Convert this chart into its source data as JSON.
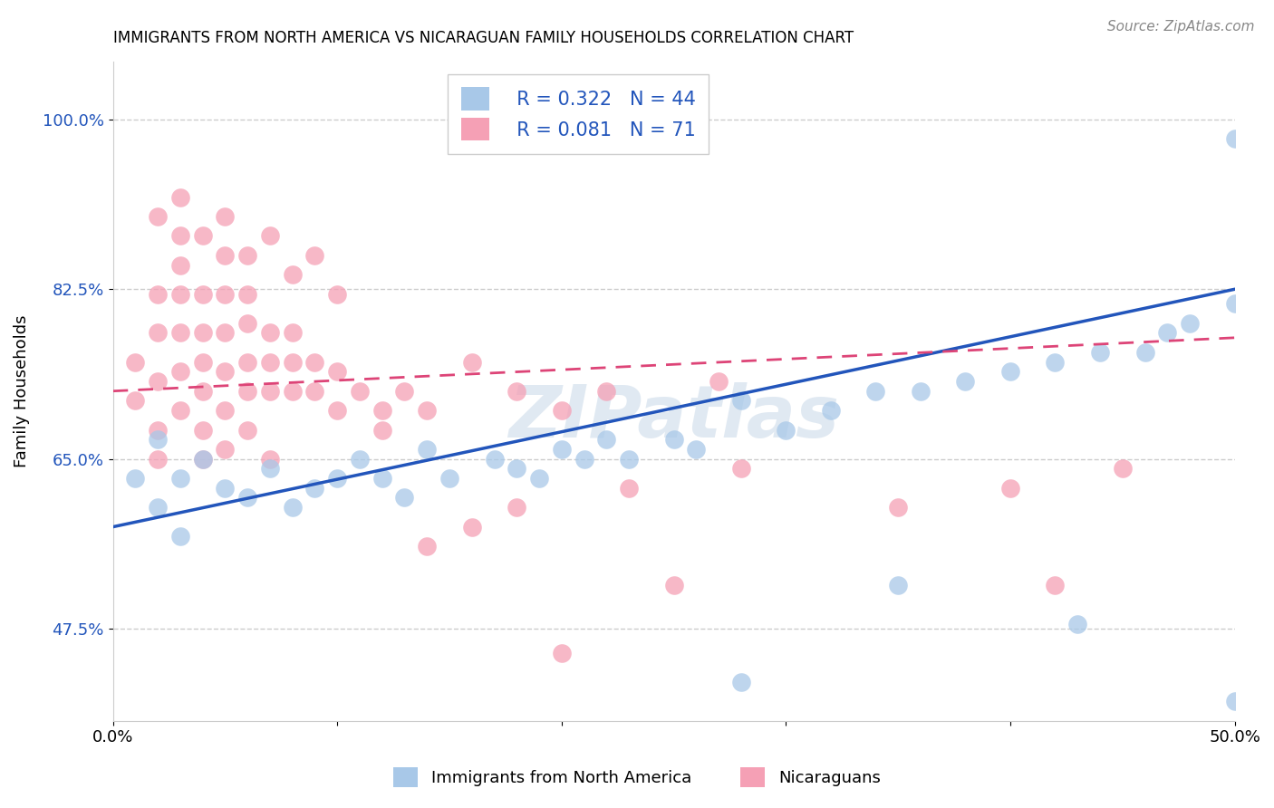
{
  "title": "IMMIGRANTS FROM NORTH AMERICA VS NICARAGUAN FAMILY HOUSEHOLDS CORRELATION CHART",
  "source": "Source: ZipAtlas.com",
  "ylabel": "Family Households",
  "xlim": [
    0.0,
    0.5
  ],
  "ylim": [
    0.38,
    1.06
  ],
  "yticks": [
    0.475,
    0.65,
    0.825,
    1.0
  ],
  "ytick_labels": [
    "47.5%",
    "65.0%",
    "82.5%",
    "100.0%"
  ],
  "xticks": [
    0.0,
    0.1,
    0.2,
    0.3,
    0.4,
    0.5
  ],
  "xtick_labels": [
    "0.0%",
    "",
    "",
    "",
    "",
    "50.0%"
  ],
  "blue_color": "#a8c8e8",
  "pink_color": "#f5a0b5",
  "blue_line_color": "#2255bb",
  "pink_line_color": "#dd4477",
  "legend_R1": "R = 0.322",
  "legend_N1": "N = 44",
  "legend_R2": "R = 0.081",
  "legend_N2": "N = 71",
  "label1": "Immigrants from North America",
  "label2": "Nicaraguans",
  "watermark": "ZIPatlas",
  "blue_scatter_x": [
    0.01,
    0.02,
    0.02,
    0.03,
    0.03,
    0.04,
    0.05,
    0.06,
    0.07,
    0.08,
    0.09,
    0.1,
    0.11,
    0.12,
    0.13,
    0.14,
    0.15,
    0.17,
    0.18,
    0.19,
    0.2,
    0.21,
    0.22,
    0.23,
    0.25,
    0.26,
    0.28,
    0.3,
    0.32,
    0.34,
    0.36,
    0.38,
    0.4,
    0.42,
    0.44,
    0.46,
    0.47,
    0.48,
    0.5,
    0.5,
    0.28,
    0.35,
    0.43,
    0.5
  ],
  "blue_scatter_y": [
    0.63,
    0.67,
    0.6,
    0.63,
    0.57,
    0.65,
    0.62,
    0.61,
    0.64,
    0.6,
    0.62,
    0.63,
    0.65,
    0.63,
    0.61,
    0.66,
    0.63,
    0.65,
    0.64,
    0.63,
    0.66,
    0.65,
    0.67,
    0.65,
    0.67,
    0.66,
    0.71,
    0.68,
    0.7,
    0.72,
    0.72,
    0.73,
    0.74,
    0.75,
    0.76,
    0.76,
    0.78,
    0.79,
    0.81,
    0.98,
    0.42,
    0.52,
    0.48,
    0.4
  ],
  "pink_scatter_x": [
    0.01,
    0.01,
    0.02,
    0.02,
    0.02,
    0.02,
    0.02,
    0.03,
    0.03,
    0.03,
    0.03,
    0.03,
    0.03,
    0.04,
    0.04,
    0.04,
    0.04,
    0.04,
    0.04,
    0.05,
    0.05,
    0.05,
    0.05,
    0.05,
    0.05,
    0.06,
    0.06,
    0.06,
    0.06,
    0.06,
    0.07,
    0.07,
    0.07,
    0.07,
    0.08,
    0.08,
    0.08,
    0.09,
    0.09,
    0.1,
    0.1,
    0.11,
    0.12,
    0.13,
    0.14,
    0.16,
    0.18,
    0.2,
    0.22,
    0.27,
    0.02,
    0.03,
    0.04,
    0.05,
    0.06,
    0.07,
    0.08,
    0.09,
    0.1,
    0.12,
    0.14,
    0.16,
    0.18,
    0.23,
    0.28,
    0.35,
    0.4,
    0.42,
    0.45,
    0.2,
    0.25
  ],
  "pink_scatter_y": [
    0.75,
    0.71,
    0.73,
    0.78,
    0.82,
    0.68,
    0.65,
    0.7,
    0.74,
    0.78,
    0.82,
    0.85,
    0.88,
    0.72,
    0.75,
    0.78,
    0.82,
    0.68,
    0.65,
    0.7,
    0.74,
    0.78,
    0.82,
    0.86,
    0.66,
    0.72,
    0.75,
    0.79,
    0.82,
    0.68,
    0.72,
    0.75,
    0.78,
    0.65,
    0.72,
    0.75,
    0.78,
    0.72,
    0.75,
    0.7,
    0.74,
    0.72,
    0.7,
    0.72,
    0.7,
    0.75,
    0.72,
    0.7,
    0.72,
    0.73,
    0.9,
    0.92,
    0.88,
    0.9,
    0.86,
    0.88,
    0.84,
    0.86,
    0.82,
    0.68,
    0.56,
    0.58,
    0.6,
    0.62,
    0.64,
    0.6,
    0.62,
    0.52,
    0.64,
    0.45,
    0.52
  ],
  "blue_line_x": [
    0.0,
    0.5
  ],
  "blue_line_y": [
    0.58,
    0.825
  ],
  "pink_line_x": [
    0.0,
    0.5
  ],
  "pink_line_y": [
    0.72,
    0.775
  ]
}
